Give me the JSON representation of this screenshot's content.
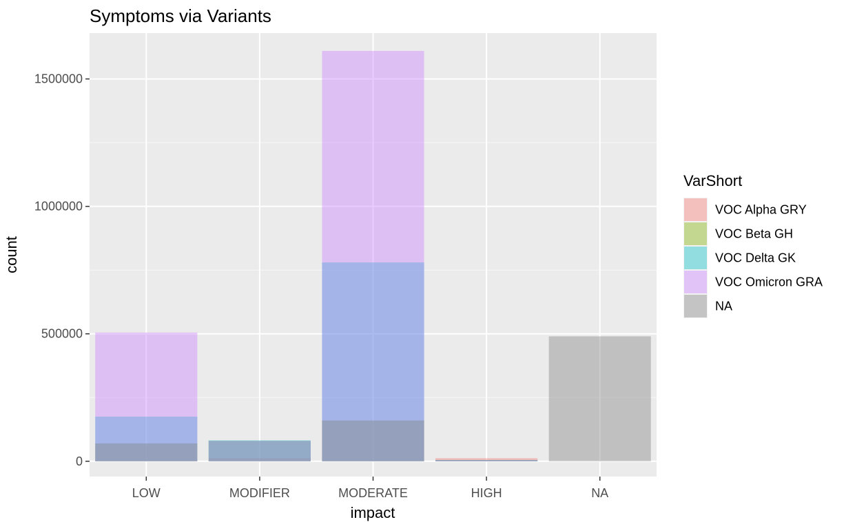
{
  "chart_data": {
    "type": "bar",
    "title": "Symptoms via Variants",
    "xlabel": "impact",
    "ylabel": "count",
    "categories": [
      "LOW",
      "MODIFIER",
      "MODERATE",
      "HIGH",
      "NA"
    ],
    "ylim": [
      -60000,
      1680000
    ],
    "yticks": [
      0,
      500000,
      1000000,
      1500000
    ],
    "ytick_labels": [
      "0",
      "500000",
      "1000000",
      "1500000"
    ],
    "overlay": "identity",
    "bar_opacity": 0.4,
    "grid": true,
    "legend": {
      "title": "VarShort",
      "position": "right"
    },
    "series": [
      {
        "name": "VOC Alpha GRY",
        "color": "#F8766D",
        "values": [
          70000,
          12000,
          160000,
          12000,
          0
        ]
      },
      {
        "name": "VOC Beta GH",
        "color": "#7CAE00",
        "values": [
          70000,
          80000,
          160000,
          5000,
          0
        ]
      },
      {
        "name": "VOC Delta GK",
        "color": "#00BFC4",
        "values": [
          175000,
          82000,
          780000,
          5000,
          0
        ]
      },
      {
        "name": "VOC Omicron GRA",
        "color": "#C77CFF",
        "values": [
          505000,
          80000,
          1610000,
          5000,
          0
        ]
      },
      {
        "name": "NA",
        "color": "#7F7F7F",
        "values": [
          0,
          0,
          0,
          0,
          490000
        ]
      }
    ]
  }
}
